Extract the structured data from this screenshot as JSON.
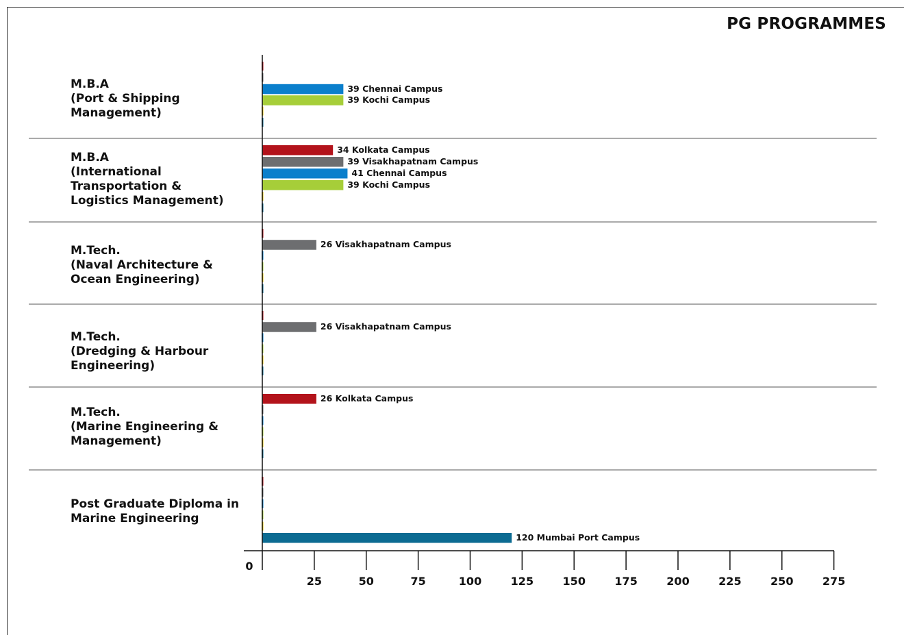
{
  "chart_data": {
    "type": "bar",
    "orientation": "horizontal",
    "title": "PG PROGRAMMES",
    "xlabel": "",
    "ylabel": "",
    "xlim": [
      0,
      275
    ],
    "x_ticks": [
      "0",
      "25",
      "50",
      "75",
      "100",
      "125",
      "150",
      "175",
      "200",
      "225",
      "250",
      "275"
    ],
    "campus_order": [
      "Kolkata",
      "Visakhapatnam",
      "Chennai",
      "Kochi",
      "Mumbai Port"
    ],
    "colors": {
      "Kolkata": "#b3131b",
      "Visakhapatnam": "#6d6e70",
      "Chennai": "#0a7fcc",
      "Kochi": "#a6ce39",
      "Mumbai Port": "#0c6b92",
      "axis": "#111111",
      "separator": "#555555",
      "stub_yellow": "#e8c200"
    },
    "categories": [
      {
        "label": "M.B.A\n(Port & Shipping\nManagement)",
        "bars": [
          {
            "campus": "Chennai",
            "value": 39,
            "label": "39 Chennai Campus"
          },
          {
            "campus": "Kochi",
            "value": 39,
            "label": "39 Kochi Campus"
          }
        ]
      },
      {
        "label": "M.B.A\n(International\nTransportation &\nLogistics   Management)",
        "bars": [
          {
            "campus": "Kolkata",
            "value": 34,
            "label": "34 Kolkata Campus"
          },
          {
            "campus": "Visakhapatnam",
            "value": 39,
            "label": "39 Visakhapatnam Campus"
          },
          {
            "campus": "Chennai",
            "value": 41,
            "label": "41 Chennai Campus"
          },
          {
            "campus": "Kochi",
            "value": 39,
            "label": "39 Kochi Campus"
          }
        ]
      },
      {
        "label": "M.Tech.\n(Naval Architecture &\nOcean Engineering)",
        "bars": [
          {
            "campus": "Visakhapatnam",
            "value": 26,
            "label": "26 Visakhapatnam Campus"
          }
        ]
      },
      {
        "label": "M.Tech.\n(Dredging & Harbour\nEngineering)",
        "bars": [
          {
            "campus": "Visakhapatnam",
            "value": 26,
            "label": "26 Visakhapatnam Campus"
          }
        ]
      },
      {
        "label": "M.Tech.\n(Marine Engineering &\nManagement)",
        "bars": [
          {
            "campus": "Kolkata",
            "value": 26,
            "label": "26 Kolkata Campus"
          }
        ]
      },
      {
        "label": "Post Graduate Diploma in\nMarine Engineering",
        "bars": [
          {
            "campus": "Mumbai Port",
            "value": 120,
            "label": "120 Mumbai Port Campus"
          }
        ]
      }
    ]
  }
}
